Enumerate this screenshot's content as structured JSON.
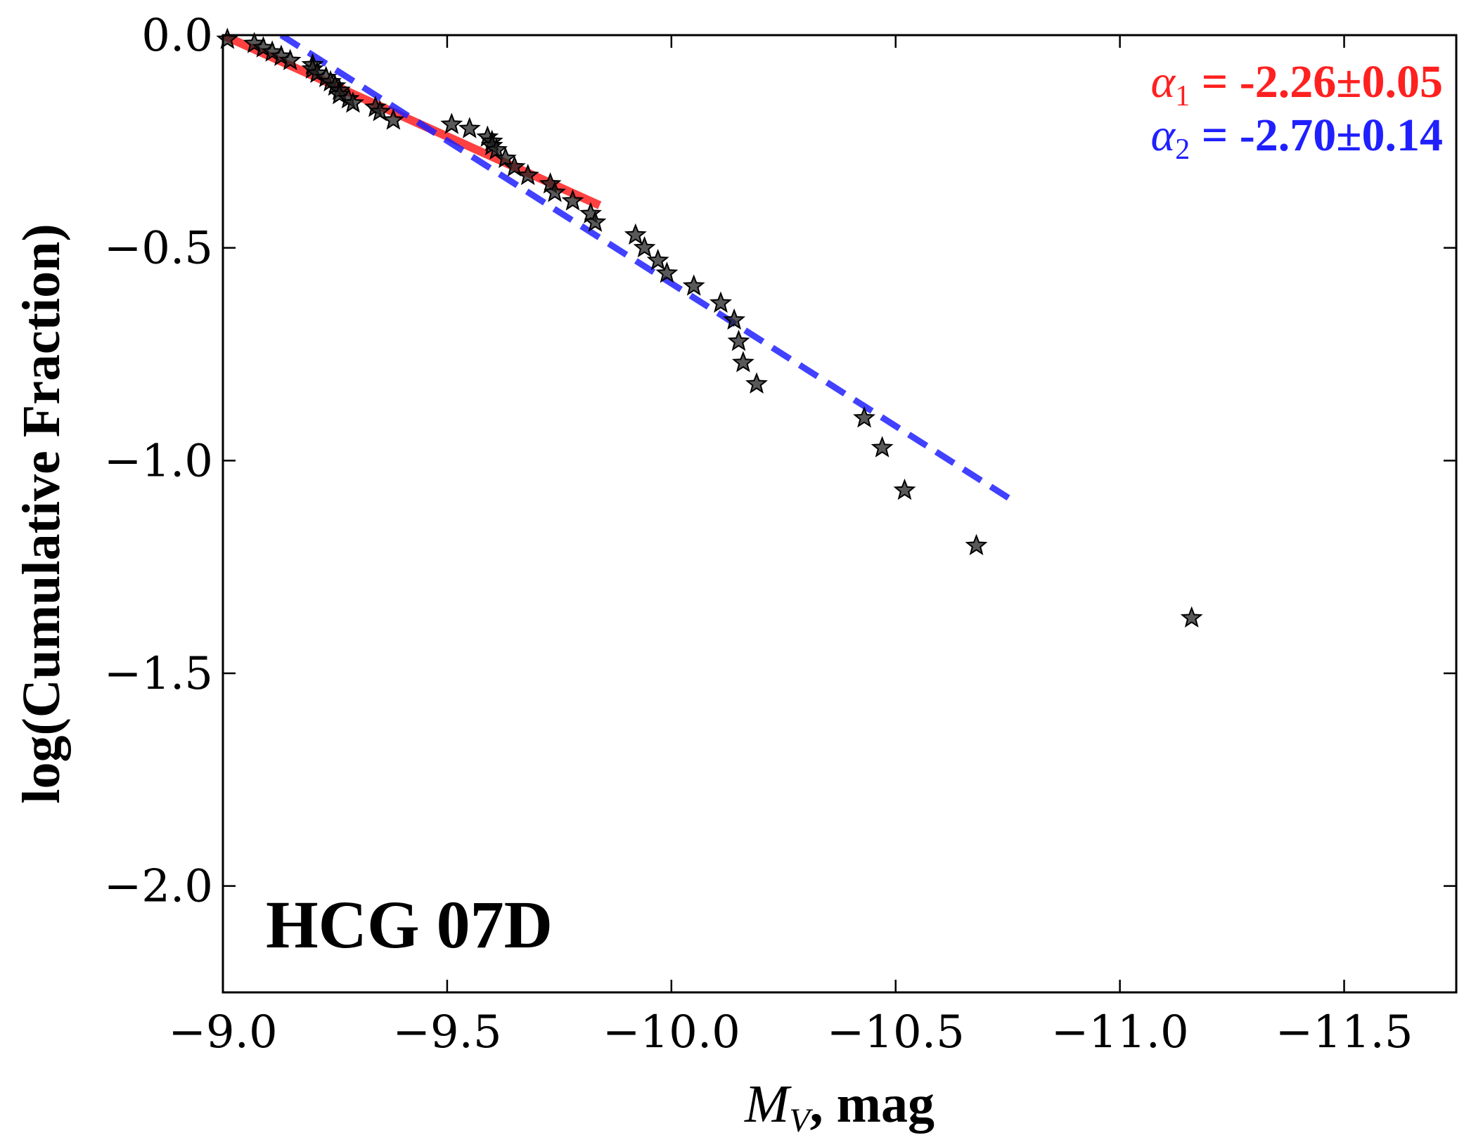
{
  "chart_data": {
    "type": "scatter",
    "title": "",
    "panel_label": "HCG 07D",
    "xlabel": {
      "var": "M",
      "sub": "V",
      "unit": ", mag"
    },
    "ylabel": "log(Cumulative Fraction)",
    "xlim": [
      -9.0,
      -11.75
    ],
    "ylim": [
      -2.25,
      0.0
    ],
    "xticks": [
      -9.0,
      -9.5,
      -10.0,
      -10.5,
      -11.0,
      -11.5
    ],
    "xtick_labels": [
      "−9.0",
      "−9.5",
      "−10.0",
      "−10.5",
      "−11.0",
      "−11.5"
    ],
    "yticks": [
      0.0,
      -0.5,
      -1.0,
      -1.5,
      -2.0
    ],
    "ytick_labels": [
      "0.0",
      "−0.5",
      "−1.0",
      "−1.5",
      "−2.0"
    ],
    "grid": false,
    "series": [
      {
        "name": "clusters",
        "marker": "star",
        "color": "#000000",
        "points": [
          [
            -9.01,
            -0.01
          ],
          [
            -9.07,
            -0.02
          ],
          [
            -9.09,
            -0.03
          ],
          [
            -9.11,
            -0.04
          ],
          [
            -9.13,
            -0.05
          ],
          [
            -9.15,
            -0.06
          ],
          [
            -9.2,
            -0.07
          ],
          [
            -9.2,
            -0.08
          ],
          [
            -9.21,
            -0.09
          ],
          [
            -9.23,
            -0.1
          ],
          [
            -9.24,
            -0.11
          ],
          [
            -9.25,
            -0.12
          ],
          [
            -9.26,
            -0.13
          ],
          [
            -9.26,
            -0.14
          ],
          [
            -9.28,
            -0.15
          ],
          [
            -9.29,
            -0.16
          ],
          [
            -9.34,
            -0.17
          ],
          [
            -9.35,
            -0.18
          ],
          [
            -9.38,
            -0.2
          ],
          [
            -9.51,
            -0.21
          ],
          [
            -9.55,
            -0.22
          ],
          [
            -9.59,
            -0.24
          ],
          [
            -9.6,
            -0.25
          ],
          [
            -9.6,
            -0.26
          ],
          [
            -9.61,
            -0.27
          ],
          [
            -9.63,
            -0.29
          ],
          [
            -9.65,
            -0.31
          ],
          [
            -9.68,
            -0.33
          ],
          [
            -9.73,
            -0.35
          ],
          [
            -9.74,
            -0.37
          ],
          [
            -9.78,
            -0.39
          ],
          [
            -9.82,
            -0.42
          ],
          [
            -9.83,
            -0.44
          ],
          [
            -9.92,
            -0.47
          ],
          [
            -9.94,
            -0.5
          ],
          [
            -9.97,
            -0.53
          ],
          [
            -9.99,
            -0.56
          ],
          [
            -10.05,
            -0.59
          ],
          [
            -10.11,
            -0.63
          ],
          [
            -10.14,
            -0.67
          ],
          [
            -10.15,
            -0.72
          ],
          [
            -10.16,
            -0.77
          ],
          [
            -10.19,
            -0.82
          ],
          [
            -10.43,
            -0.9
          ],
          [
            -10.47,
            -0.97
          ],
          [
            -10.52,
            -1.07
          ],
          [
            -10.68,
            -1.2
          ],
          [
            -11.16,
            -1.37
          ]
        ]
      }
    ],
    "fits": [
      {
        "name": "alpha1",
        "label": {
          "sym": "α",
          "sub": "1",
          "text": " = -2.26±0.05"
        },
        "color": "#ff2020",
        "style": "solid",
        "x": [
          -9.0,
          -9.84
        ],
        "y": [
          0.0,
          -0.4
        ]
      },
      {
        "name": "alpha2",
        "label": {
          "sym": "α",
          "sub": "2",
          "text": " = -2.70±0.14"
        },
        "color": "#2020ff",
        "style": "dashed",
        "x": [
          -9.13,
          -10.77
        ],
        "y": [
          0.0,
          -1.1
        ]
      }
    ]
  }
}
